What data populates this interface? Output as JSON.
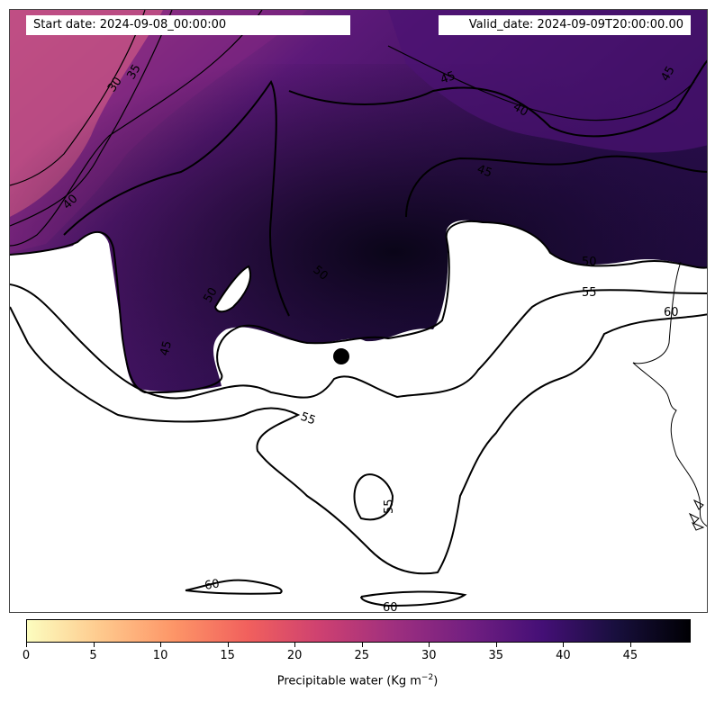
{
  "header": {
    "start_date": "Start date: 2024-09-08_00:00:00",
    "valid_date": "Valid_date: 2024-09-09T20:00:00.00"
  },
  "contours": {
    "labels": [
      "30",
      "35",
      "40",
      "45",
      "45",
      "40",
      "45",
      "40",
      "45",
      "50",
      "50",
      "50",
      "55",
      "60",
      "55",
      "55",
      "60",
      "60"
    ]
  },
  "colorbar": {
    "label": "Precipitable water (Kg m",
    "label_sup": "−2",
    "label_end": ")",
    "ticks": [
      "0",
      "5",
      "10",
      "15",
      "20",
      "25",
      "30",
      "35",
      "40",
      "45"
    ],
    "range": [
      0,
      49.5
    ],
    "colors": [
      "#fcfdbf",
      "#fec98d",
      "#fd9567",
      "#f1605d",
      "#cd4071",
      "#9e2f7f",
      "#721f81",
      "#440f76",
      "#180f3d",
      "#000004"
    ]
  }
}
